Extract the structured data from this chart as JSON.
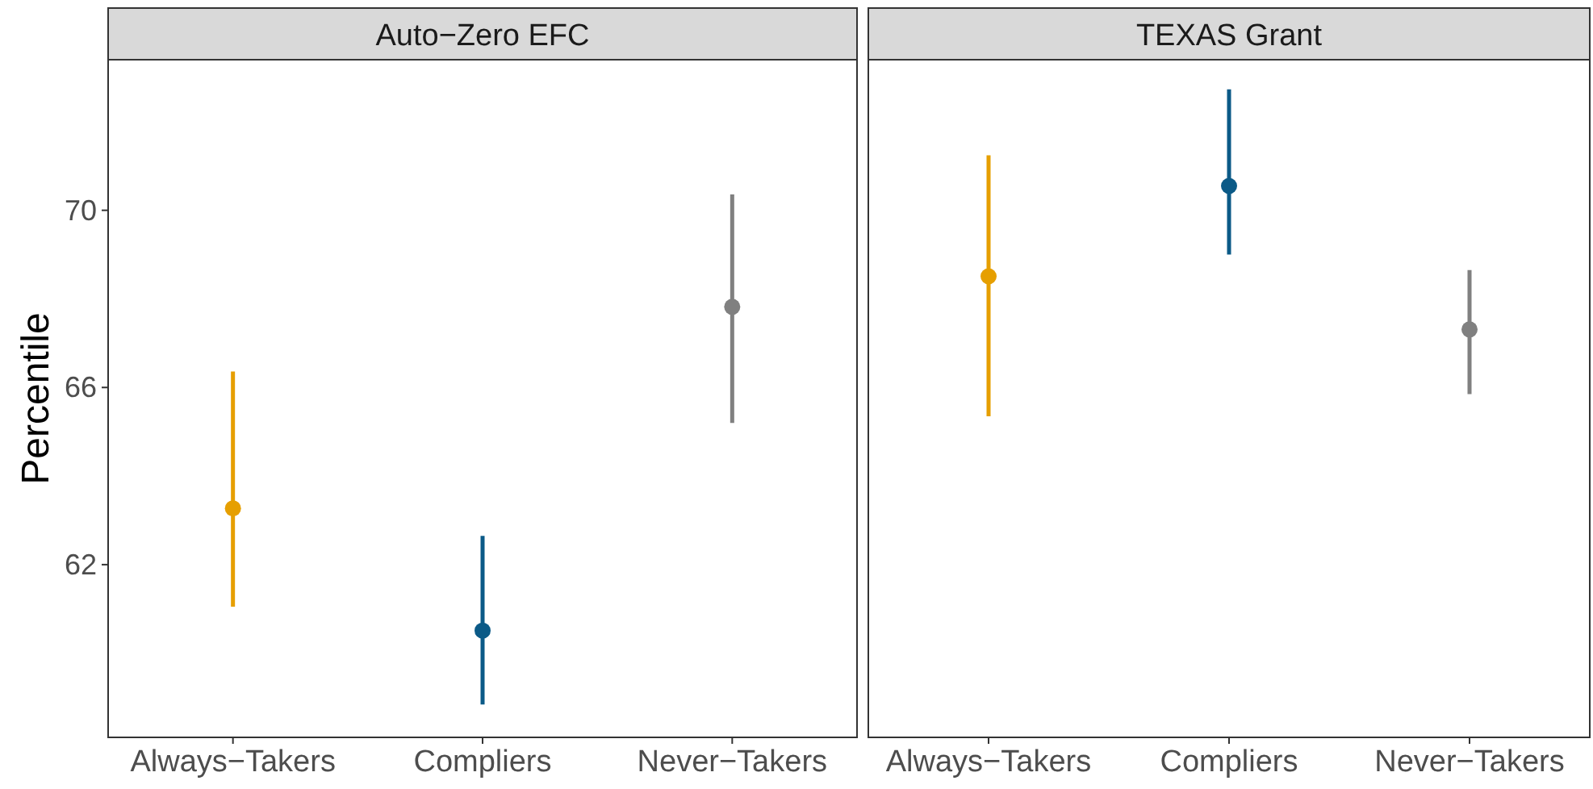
{
  "chart_data": [
    {
      "type": "scatter",
      "title": "Auto−Zero EFC",
      "ylabel": "Percentile",
      "categories": [
        "Always−Takers",
        "Compliers",
        "Never−Takers"
      ],
      "values": [
        63.27,
        60.51,
        67.82
      ],
      "colors": [
        "#e69f00",
        "#0b5a87",
        "#808080"
      ],
      "errors": [
        [
          61.05,
          66.36
        ],
        [
          58.84,
          62.65
        ],
        [
          65.2,
          70.36
        ]
      ],
      "ylim": [
        58.1,
        73.4
      ],
      "yticks": [
        62,
        66,
        70
      ],
      "marker": "circle"
    },
    {
      "type": "scatter",
      "title": "TEXAS Grant",
      "categories": [
        "Always−Takers",
        "Compliers",
        "Never−Takers"
      ],
      "values": [
        68.51,
        70.55,
        67.31
      ],
      "colors": [
        "#e69f00",
        "#0b5a87",
        "#808080"
      ],
      "errors": [
        [
          65.35,
          71.24
        ],
        [
          69.0,
          72.73
        ],
        [
          65.85,
          68.65
        ]
      ],
      "ylim": [
        58.1,
        73.4
      ],
      "yticks": [
        62,
        66,
        70
      ],
      "tick_labels": "x",
      "marker": "circle"
    }
  ]
}
